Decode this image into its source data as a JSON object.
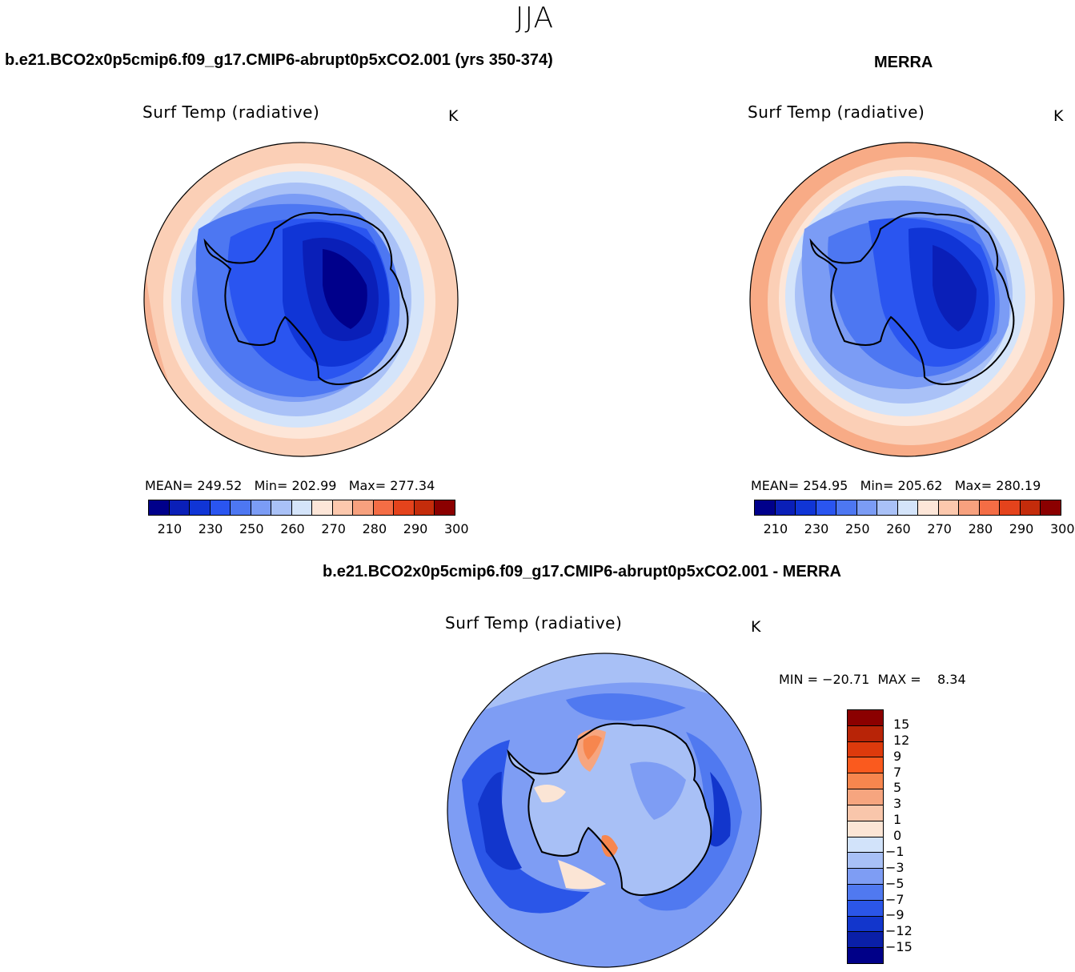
{
  "page": {
    "title": "JJA"
  },
  "panel_left": {
    "case_title": "b.e21.BCO2x0p5cmip6.f09_g17.CMIP6-abrupt0p5xCO2.001 (yrs 350-374)",
    "var_title": "Surf Temp (radiative)",
    "units": "K",
    "stats": "MEAN= 249.52   Min= 202.99   Max= 277.34",
    "ticks": [
      "210",
      "230",
      "250",
      "260",
      "270",
      "280",
      "290",
      "300"
    ]
  },
  "panel_right": {
    "case_title": "MERRA",
    "var_title": "Surf Temp (radiative)",
    "units": "K",
    "stats": "MEAN= 254.95   Min= 205.62   Max= 280.19",
    "ticks": [
      "210",
      "230",
      "250",
      "260",
      "270",
      "280",
      "290",
      "300"
    ]
  },
  "panel_diff": {
    "case_title": "b.e21.BCO2x0p5cmip6.f09_g17.CMIP6-abrupt0p5xCO2.001 - MERRA",
    "var_title": "Surf Temp (radiative)",
    "units": "K",
    "stats": "MIN = −20.71  MAX =    8.34",
    "ticks": [
      "15",
      "12",
      "9",
      "7",
      "5",
      "3",
      "1",
      "0",
      "−1",
      "−3",
      "−5",
      "−7",
      "−9",
      "−12",
      "−15"
    ]
  },
  "colors": {
    "abs_scale": [
      "#00008b",
      "#0a1fb8",
      "#1035d6",
      "#2a55f0",
      "#4d77f2",
      "#7b9cf5",
      "#a9c1f7",
      "#d4e4fa",
      "#fde6d8",
      "#fcc8ad",
      "#f7a17e",
      "#f46d45",
      "#e4431c",
      "#c42c0b",
      "#8b0000"
    ],
    "diff_scale": [
      "#8b0000",
      "#b82407",
      "#dd3a0c",
      "#fa5a1e",
      "#f7864e",
      "#f6a57f",
      "#f9c6ab",
      "#fbe5d5",
      "#d2e3fa",
      "#a8c0f6",
      "#7e9df4",
      "#5079f0",
      "#2b56e8",
      "#1236cc",
      "#0a1fa8",
      "#000088"
    ]
  }
}
